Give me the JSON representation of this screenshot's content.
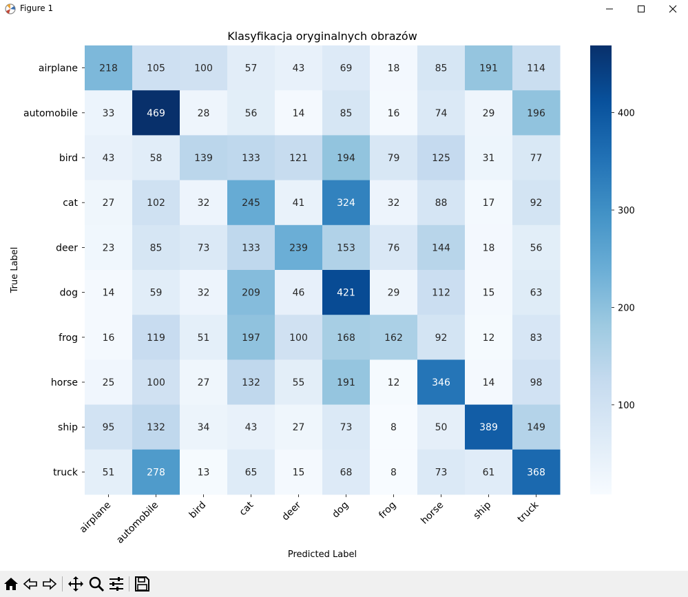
{
  "window": {
    "title": "Figure 1"
  },
  "toolbar": {
    "buttons": [
      "home-icon",
      "back-icon",
      "forward-icon",
      "pan-icon",
      "zoom-icon",
      "configure-icon",
      "save-icon"
    ]
  },
  "chart_data": {
    "type": "heatmap",
    "title": "Klasyfikacja oryginalnych obrazów",
    "xlabel": "Predicted Label",
    "ylabel": "True Label",
    "x_categories": [
      "airplane",
      "automobile",
      "bird",
      "cat",
      "deer",
      "dog",
      "frog",
      "horse",
      "ship",
      "truck"
    ],
    "y_categories": [
      "airplane",
      "automobile",
      "bird",
      "cat",
      "deer",
      "dog",
      "frog",
      "horse",
      "ship",
      "truck"
    ],
    "values": [
      [
        218,
        105,
        100,
        57,
        43,
        69,
        18,
        85,
        191,
        114
      ],
      [
        33,
        469,
        28,
        56,
        14,
        85,
        16,
        74,
        29,
        196
      ],
      [
        43,
        58,
        139,
        133,
        121,
        194,
        79,
        125,
        31,
        77
      ],
      [
        27,
        102,
        32,
        245,
        41,
        324,
        32,
        88,
        17,
        92
      ],
      [
        23,
        85,
        73,
        133,
        239,
        153,
        76,
        144,
        18,
        56
      ],
      [
        14,
        59,
        32,
        209,
        46,
        421,
        29,
        112,
        15,
        63
      ],
      [
        16,
        119,
        51,
        197,
        100,
        168,
        162,
        92,
        12,
        83
      ],
      [
        25,
        100,
        27,
        132,
        55,
        191,
        12,
        346,
        14,
        98
      ],
      [
        95,
        132,
        34,
        43,
        27,
        73,
        8,
        50,
        389,
        149
      ],
      [
        51,
        278,
        13,
        65,
        15,
        68,
        8,
        73,
        61,
        368
      ]
    ],
    "colormap": "Blues",
    "vmin": 8,
    "vmax": 469,
    "colorbar_ticks": [
      100,
      200,
      300,
      400
    ],
    "grid": false,
    "annotations": true
  }
}
